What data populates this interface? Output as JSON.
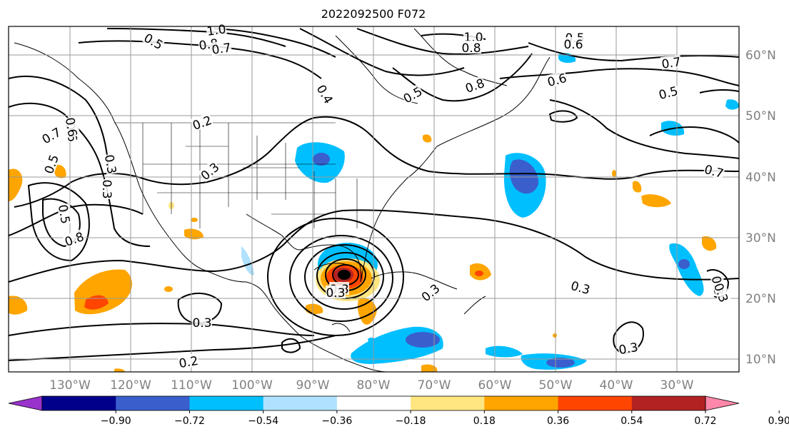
{
  "title": "2022092500 F072",
  "map": {
    "longitude_labels": [
      "130°W",
      "120°W",
      "110°W",
      "100°W",
      "90°W",
      "80°W",
      "70°W",
      "60°W",
      "50°W",
      "40°W",
      "30°W"
    ],
    "latitude_labels": [
      "60°N",
      "50°N",
      "40°N",
      "30°N",
      "20°N",
      "10°N"
    ],
    "grid": true
  },
  "colorbar": {
    "tick_labels": [
      "−0.90",
      "−0.72",
      "−0.54",
      "−0.36",
      "−0.18",
      "0.18",
      "0.36",
      "0.54",
      "0.72",
      "0.90"
    ],
    "colors": [
      "#9932cc",
      "#00008b",
      "#3a5fcd",
      "#00bfff",
      "#b0e2ff",
      "#ffffff",
      "#ffe680",
      "#ffa500",
      "#ff4500",
      "#b22222",
      "#ff88aa"
    ],
    "extend": "both"
  },
  "contour_labels": [
    "1.0",
    "0.8",
    "0.7",
    "0.5",
    "1.0",
    "0.8",
    "0.5",
    "0.6",
    "0.7",
    "0.5",
    "0.6",
    "0.5",
    "0.8",
    "0.4",
    "0.2",
    "0.3",
    "0.7",
    "0.6",
    "0.3",
    "0.5",
    "0.8",
    "0.5",
    "0.3",
    "0.3",
    "0.8",
    "0.7",
    "0.3",
    "0.3",
    "0.2",
    "0.3",
    "0.3",
    "0.3",
    "0.3",
    "0.6"
  ]
}
